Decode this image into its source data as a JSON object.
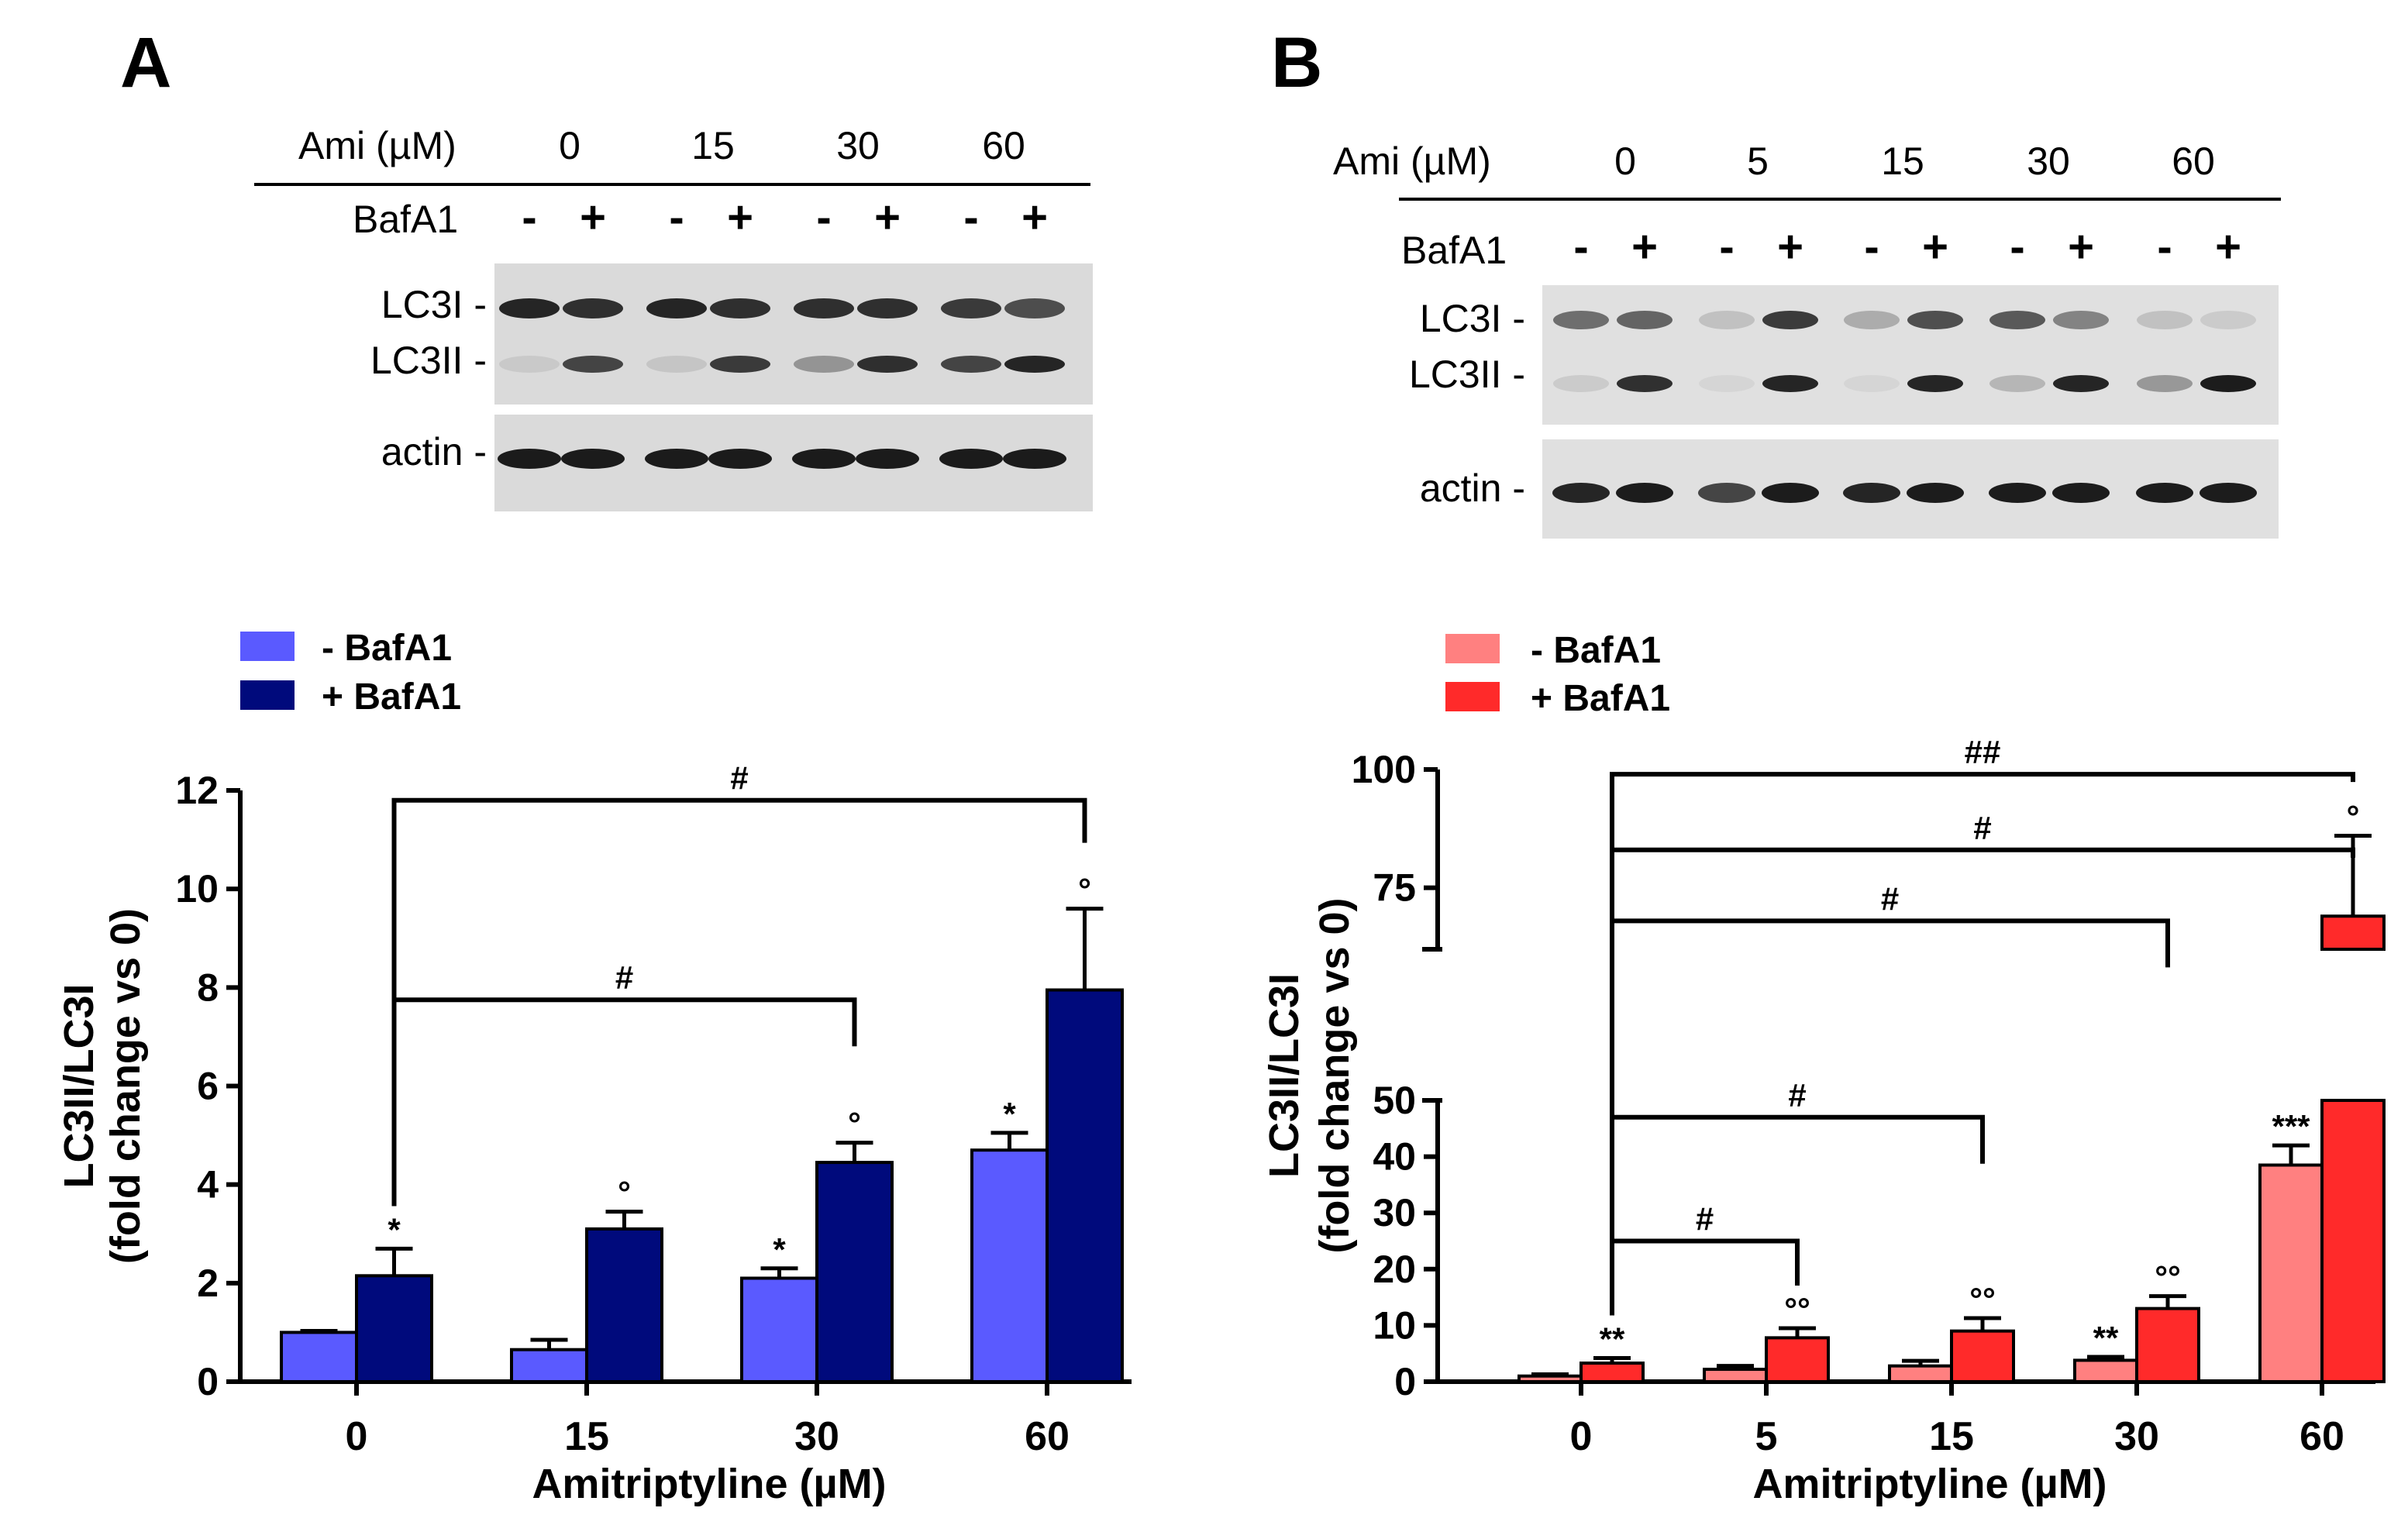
{
  "panels": {
    "A": {
      "letter": "A",
      "blot": {
        "ami_label": "Ami (µM)",
        "doses": [
          "0",
          "15",
          "30",
          "60"
        ],
        "bafa1_label": "BafA1",
        "signs": [
          "-",
          "+",
          "-",
          "+",
          "-",
          "+",
          "-",
          "+"
        ],
        "rows": [
          "LC3I -",
          "LC3II -",
          "actin -"
        ]
      },
      "legend": [
        "- BafA1",
        "+ BafA1"
      ]
    },
    "B": {
      "letter": "B",
      "blot": {
        "ami_label": "Ami (µM)",
        "doses": [
          "0",
          "5",
          "15",
          "30",
          "60"
        ],
        "bafa1_label": "BafA1",
        "signs": [
          "-",
          "+",
          "-",
          "+",
          "-",
          "+",
          "-",
          "+",
          "-",
          "+"
        ],
        "rows": [
          "LC3I -",
          "LC3II -",
          "actin -"
        ]
      },
      "legend": [
        "- BafA1",
        "+ BafA1"
      ]
    }
  },
  "chart_data": [
    {
      "type": "bar",
      "panel": "A",
      "categories": [
        "0",
        "15",
        "30",
        "60"
      ],
      "xlabel": "Amitriptyline (µM)",
      "ylabel": [
        "LC3II/LC3I",
        "(fold change vs 0)"
      ],
      "ylim": [
        0,
        12
      ],
      "yticks": [
        0,
        2,
        4,
        6,
        8,
        10,
        12
      ],
      "series": [
        {
          "name": "- BafA1",
          "color": "#5a5aff",
          "values": [
            1.0,
            0.65,
            2.1,
            4.7
          ],
          "errors": [
            0.03,
            0.2,
            0.2,
            0.35
          ],
          "marks": [
            "",
            "",
            "*",
            "*"
          ]
        },
        {
          "name": "+ BafA1",
          "color": "#000a7c",
          "values": [
            2.15,
            3.1,
            4.45,
            7.95
          ],
          "errors": [
            0.55,
            0.35,
            0.4,
            1.65
          ],
          "marks": [
            "*",
            "°",
            "°",
            "°"
          ]
        }
      ],
      "brackets": [
        {
          "from": 0,
          "to": 3,
          "y": 11.8,
          "label": "#"
        },
        {
          "from": 0,
          "to": 2,
          "y": 7.75,
          "label": "#"
        }
      ]
    },
    {
      "type": "bar",
      "panel": "B",
      "categories": [
        "0",
        "5",
        "15",
        "30",
        "60"
      ],
      "xlabel": "Amitriptyline (µM)",
      "ylabel": [
        "LC3II/LC3I",
        "(fold change vs 0)"
      ],
      "ylim": [
        0,
        100
      ],
      "axis_break": [
        50,
        62
      ],
      "yticks": [
        0,
        10,
        20,
        30,
        40,
        50,
        75,
        100
      ],
      "series": [
        {
          "name": "- BafA1",
          "color": "#ff8080",
          "values": [
            1.0,
            2.2,
            2.8,
            3.8,
            38.5
          ],
          "errors": [
            0.3,
            0.6,
            0.9,
            0.6,
            3.5
          ],
          "marks": [
            "",
            "",
            "",
            "**",
            "***"
          ]
        },
        {
          "name": "+ BafA1",
          "color": "#ff2a2a",
          "values": [
            3.3,
            7.8,
            9.0,
            13.0,
            69.0
          ],
          "errors": [
            0.9,
            1.7,
            2.3,
            2.2,
            17.0
          ],
          "marks": [
            "**",
            "°°",
            "°°",
            "°°",
            "°"
          ]
        }
      ],
      "brackets": [
        {
          "from": 0,
          "to": 4,
          "y": 99,
          "label": "##"
        },
        {
          "from": 0,
          "to": 4,
          "y": 83,
          "label": "#"
        },
        {
          "from": 0,
          "to": 3,
          "y": 68,
          "label": "#"
        },
        {
          "from": 0,
          "to": 2,
          "y": 47,
          "label": "#"
        },
        {
          "from": 0,
          "to": 1,
          "y": 25,
          "label": "#"
        }
      ]
    }
  ]
}
